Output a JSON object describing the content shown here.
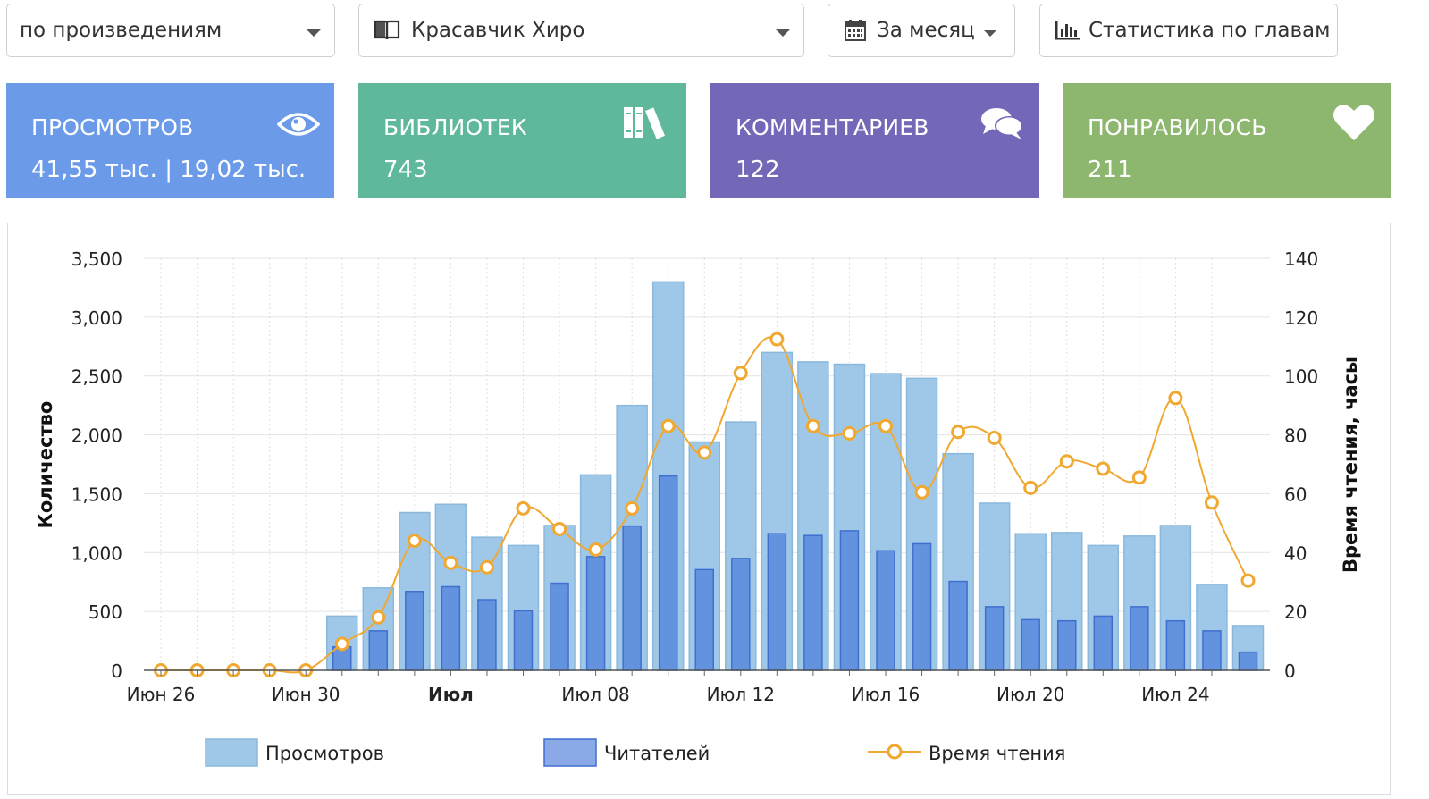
{
  "filters": {
    "group_by": "по произведениям",
    "work": "Красавчик Хиро",
    "period": "За месяц",
    "chapter_stats": "Статистика по главам"
  },
  "icons": {
    "work": "book-icon",
    "period": "calendar-icon",
    "chapter_stats": "bar-chart-icon",
    "views": "eye-icon",
    "libraries": "books-icon",
    "comments": "comments-icon",
    "likes": "heart-icon"
  },
  "cards": {
    "views": {
      "title": "ПРОСМОТРОВ",
      "value": "41,55 тыс. | 19,02 тыс.",
      "color": "#6b9be8"
    },
    "libraries": {
      "title": "БИБЛИОТЕК",
      "value": "743",
      "color": "#5fb89c"
    },
    "comments": {
      "title": "КОММЕНТАРИЕВ",
      "value": "122",
      "color": "#7367b8"
    },
    "likes": {
      "title": "ПОНРАВИЛОСЬ",
      "value": "211",
      "color": "#8db66e"
    }
  },
  "chart_data": {
    "type": "bar",
    "title": "",
    "ylabel": "Количество",
    "y2label": "Время чтения, часы",
    "ylim": [
      0,
      3500
    ],
    "y2lim": [
      0,
      140
    ],
    "yticks": [
      "0",
      "500",
      "1,000",
      "1,500",
      "2,000",
      "2,500",
      "3,000",
      "3,500"
    ],
    "y2ticks": [
      "0",
      "20",
      "40",
      "60",
      "80",
      "100",
      "120",
      "140"
    ],
    "categories": [
      "Июн 26",
      "Июн 27",
      "Июн 28",
      "Июн 29",
      "Июн 30",
      "Июл 01",
      "Июл 02",
      "Июл 03",
      "Июл 04",
      "Июл 05",
      "Июл 06",
      "Июл 07",
      "Июл 08",
      "Июл 09",
      "Июл 10",
      "Июл 11",
      "Июл 12",
      "Июл 13",
      "Июл 14",
      "Июл 15",
      "Июл 16",
      "Июл 17",
      "Июл 18",
      "Июл 19",
      "Июл 20",
      "Июл 21",
      "Июл 22",
      "Июл 23",
      "Июл 24",
      "Июл 25",
      "Июл 26"
    ],
    "x_tick_labels": [
      {
        "index": 0,
        "label": "Июн 26",
        "bold": false
      },
      {
        "index": 4,
        "label": "Июн 30",
        "bold": false
      },
      {
        "index": 8,
        "label": "Июл",
        "bold": true
      },
      {
        "index": 12,
        "label": "Июл 08",
        "bold": false
      },
      {
        "index": 16,
        "label": "Июл 12",
        "bold": false
      },
      {
        "index": 20,
        "label": "Июл 16",
        "bold": false
      },
      {
        "index": 24,
        "label": "Июл 20",
        "bold": false
      },
      {
        "index": 28,
        "label": "Июл 24",
        "bold": false
      }
    ],
    "series": [
      {
        "name": "Просмотров",
        "type": "bar",
        "axis": "left",
        "color": "#9fc8e8",
        "values": [
          0,
          0,
          0,
          0,
          0,
          460,
          700,
          1340,
          1410,
          1130,
          1060,
          1230,
          1660,
          2250,
          3300,
          1940,
          2110,
          2700,
          2620,
          2600,
          2520,
          2480,
          1840,
          1420,
          1160,
          1170,
          1060,
          1140,
          1230,
          730,
          380
        ]
      },
      {
        "name": "Читателей",
        "type": "bar",
        "axis": "left",
        "color": "#6393df",
        "values": [
          0,
          0,
          0,
          0,
          0,
          200,
          335,
          670,
          710,
          600,
          505,
          740,
          965,
          1225,
          1650,
          855,
          950,
          1160,
          1145,
          1185,
          1015,
          1075,
          755,
          540,
          430,
          420,
          460,
          540,
          420,
          335,
          155
        ]
      },
      {
        "name": "Время чтения",
        "type": "line",
        "axis": "right",
        "color": "#f0a830",
        "values": [
          0,
          0,
          0,
          0,
          0,
          9,
          18,
          44,
          36.5,
          35,
          55,
          48,
          41,
          55,
          83,
          74,
          101,
          112.5,
          83,
          80.5,
          83,
          60.5,
          81,
          79,
          62,
          71,
          68.5,
          65.5,
          92.5,
          57,
          30.5
        ]
      }
    ]
  }
}
